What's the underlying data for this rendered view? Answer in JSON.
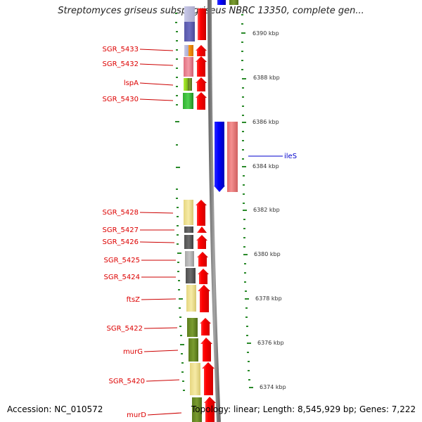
{
  "title": "Streptomyces griseus subsp. griseus NBRC 13350, complete gen...",
  "footer": {
    "accession": "Accession: NC_010572",
    "topology": "Topology: linear; Length: 8,545,929 bp; Genes: 7,222"
  },
  "colors": {
    "label_red": "#dd0000",
    "label_blue": "#0000cc",
    "arrow_red": "#ff0000",
    "arrow_blue": "#0000ff",
    "salmon": "#f08080",
    "dot_green": "#2a8a2a"
  },
  "scale_labels": [
    "6390 kbp",
    "6388 kbp",
    "6386 kbp",
    "6384 kbp",
    "6382 kbp",
    "6380 kbp",
    "6378 kbp",
    "6376 kbp",
    "6374 kbp"
  ],
  "gene_labels": [
    "SGR_5433",
    "SGR_5432",
    "lspA",
    "SGR_5430",
    "SGR_5428",
    "SGR_5427",
    "SGR_5426",
    "SGR_5425",
    "SGR_5424",
    "ftsZ",
    "SGR_5422",
    "murG",
    "SGR_5420",
    "murD"
  ],
  "right_gene_label": "ileS"
}
